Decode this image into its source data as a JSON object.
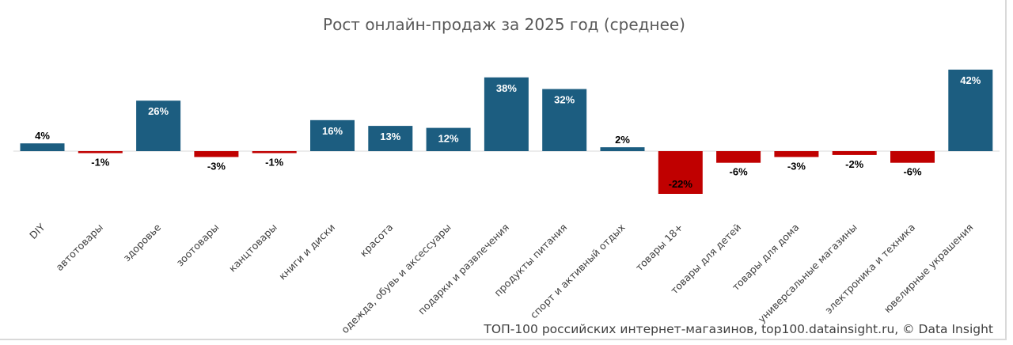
{
  "chart_data": {
    "type": "bar",
    "title": "Рост онлайн-продаж за 2025 год (среднее)",
    "source": "ТОП-100 российских интернет-магазинов, top100.datainsight.ru, © Data Insight",
    "unit": "%",
    "categories": [
      "DIY",
      "автотовары",
      "здоровье",
      "зоотовары",
      "канцтовары",
      "книги и диски",
      "красота",
      "одежда, обувь и аксессуары",
      "подарки и развлечения",
      "продукты питания",
      "спорт и активный отдых",
      "товары 18+",
      "товары для детей",
      "товары для дома",
      "универсальные магазины",
      "электроника и техника",
      "ювелирные украшения"
    ],
    "values": [
      4,
      -1,
      26,
      -3,
      -1,
      16,
      13,
      12,
      38,
      32,
      2,
      -22,
      -6,
      -3,
      -2,
      -6,
      42
    ],
    "labels": [
      "4%",
      "-1%",
      "26%",
      "-3%",
      "-1%",
      "16%",
      "13%",
      "12%",
      "38%",
      "32%",
      "2%",
      "-22%",
      "-6%",
      "-3%",
      "-2%",
      "-6%",
      "42%"
    ],
    "colors": {
      "positive": "#1c5d80",
      "negative": "#c00000"
    },
    "grid": false,
    "legend": "none"
  }
}
